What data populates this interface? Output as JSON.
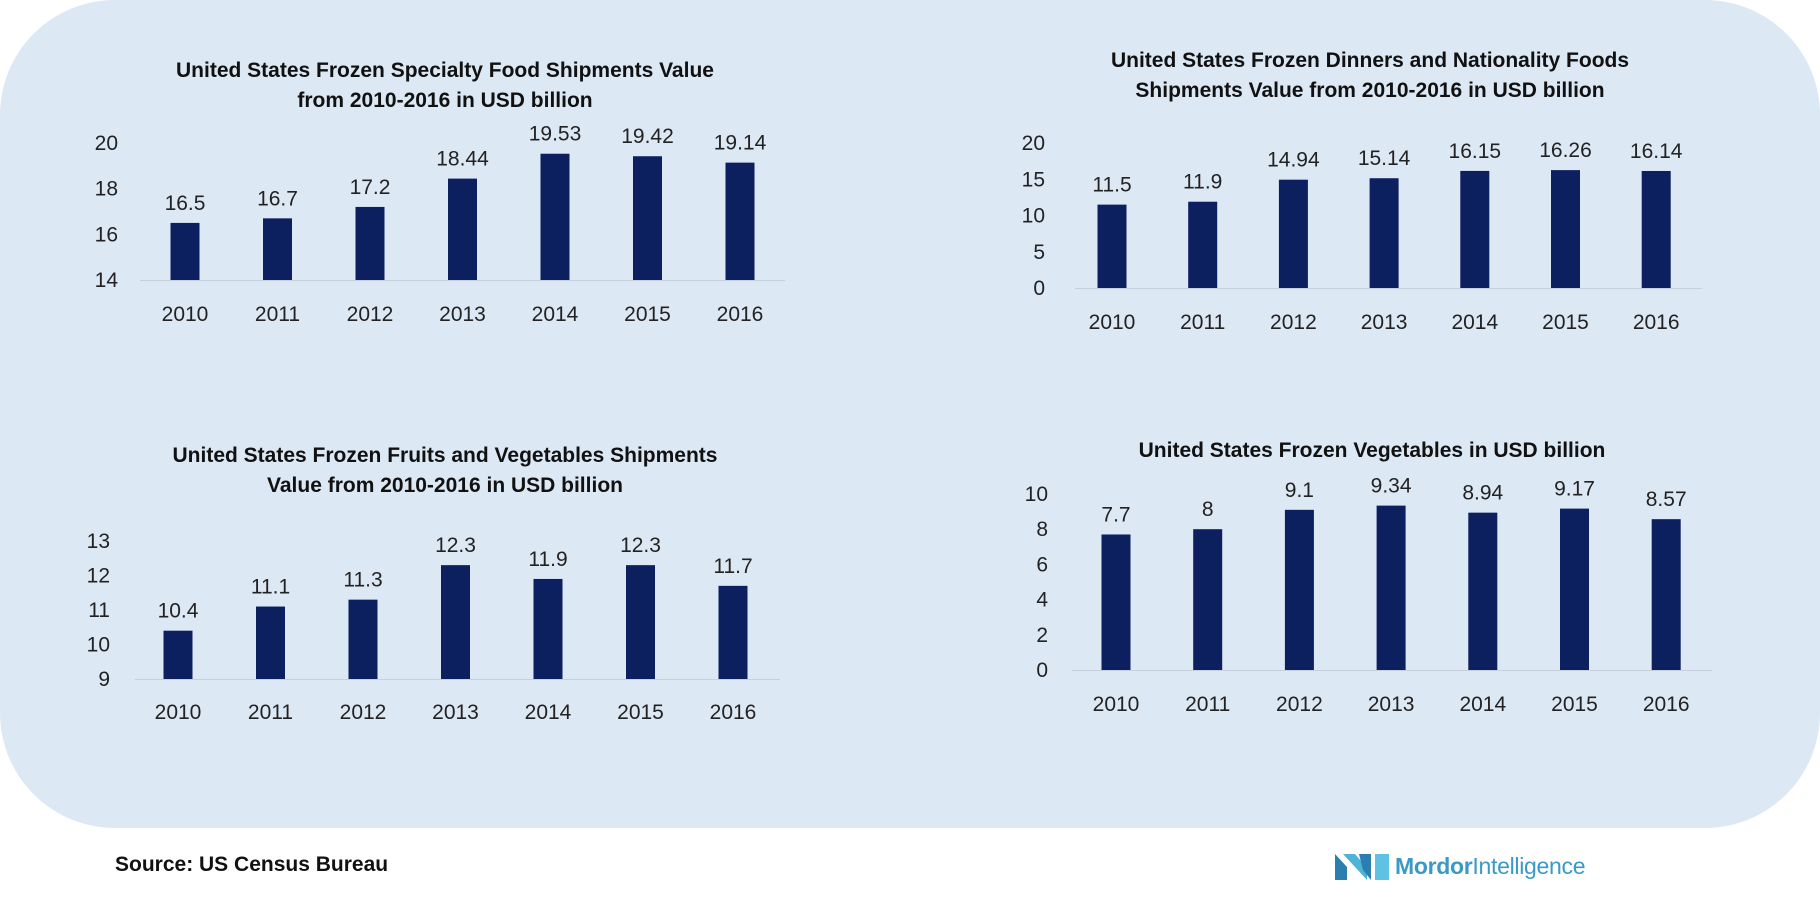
{
  "chart_data": [
    {
      "type": "bar",
      "title": "United States Frozen Specialty Food Shipments Value from 2010-2016 in USD billion",
      "title_lines": [
        "United States Frozen Specialty Food Shipments Value",
        "from 2010-2016 in USD billion"
      ],
      "categories": [
        "2010",
        "2011",
        "2012",
        "2013",
        "2014",
        "2015",
        "2016"
      ],
      "values": [
        16.5,
        16.7,
        17.2,
        18.44,
        19.53,
        19.42,
        19.14
      ],
      "value_labels": [
        "16.5",
        "16.7",
        "17.2",
        "18.44",
        "19.53",
        "19.42",
        "19.14"
      ],
      "ylim": [
        14,
        20
      ],
      "yticks": [
        14,
        16,
        18,
        20
      ],
      "grid": false,
      "bar_color": "#0c1f5e"
    },
    {
      "type": "bar",
      "title": "United States Frozen  Dinners and Nationality Foods Shipments Value from 2010-2016 in USD billion",
      "title_lines": [
        "United States Frozen  Dinners and Nationality Foods",
        "Shipments Value from 2010-2016 in USD billion"
      ],
      "categories": [
        "2010",
        "2011",
        "2012",
        "2013",
        "2014",
        "2015",
        "2016"
      ],
      "values": [
        11.5,
        11.9,
        14.94,
        15.14,
        16.15,
        16.26,
        16.14
      ],
      "value_labels": [
        "11.5",
        "11.9",
        "14.94",
        "15.14",
        "16.15",
        "16.26",
        "16.14"
      ],
      "ylim": [
        0,
        20
      ],
      "yticks": [
        0,
        5,
        10,
        15,
        20
      ],
      "grid": false,
      "bar_color": "#0c1f5e"
    },
    {
      "type": "bar",
      "title": "United States Frozen Fruits and Vegetables Shipments Value from 2010-2016 in USD billion",
      "title_lines": [
        "United States Frozen Fruits and Vegetables Shipments",
        "Value from 2010-2016 in USD billion"
      ],
      "categories": [
        "2010",
        "2011",
        "2012",
        "2013",
        "2014",
        "2015",
        "2016"
      ],
      "values": [
        10.4,
        11.1,
        11.3,
        12.3,
        11.9,
        12.3,
        11.7
      ],
      "value_labels": [
        "10.4",
        "11.1",
        "11.3",
        "12.3",
        "11.9",
        "12.3",
        "11.7"
      ],
      "ylim": [
        9,
        13
      ],
      "yticks": [
        9,
        10,
        11,
        12,
        13
      ],
      "grid": false,
      "bar_color": "#0c1f5e"
    },
    {
      "type": "bar",
      "title": "United States Frozen Vegetables in USD billion",
      "title_lines": [
        "United States Frozen Vegetables in USD billion"
      ],
      "categories": [
        "2010",
        "2011",
        "2012",
        "2013",
        "2014",
        "2015",
        "2016"
      ],
      "values": [
        7.7,
        8,
        9.1,
        9.34,
        8.94,
        9.17,
        8.57
      ],
      "value_labels": [
        "7.7",
        "8",
        "9.1",
        "9.34",
        "8.94",
        "9.17",
        "8.57"
      ],
      "ylim": [
        0,
        10
      ],
      "yticks": [
        0,
        2,
        4,
        6,
        8,
        10
      ],
      "grid": false,
      "bar_color": "#0c1f5e"
    }
  ],
  "footer": {
    "source": "Source: US Census Bureau",
    "logo_bold": "Mordor",
    "logo_light": "Intelligence"
  },
  "colors": {
    "panel_background": "#dde8f5",
    "bar": "#0c1f5e",
    "logo": "#3b9ac4"
  }
}
